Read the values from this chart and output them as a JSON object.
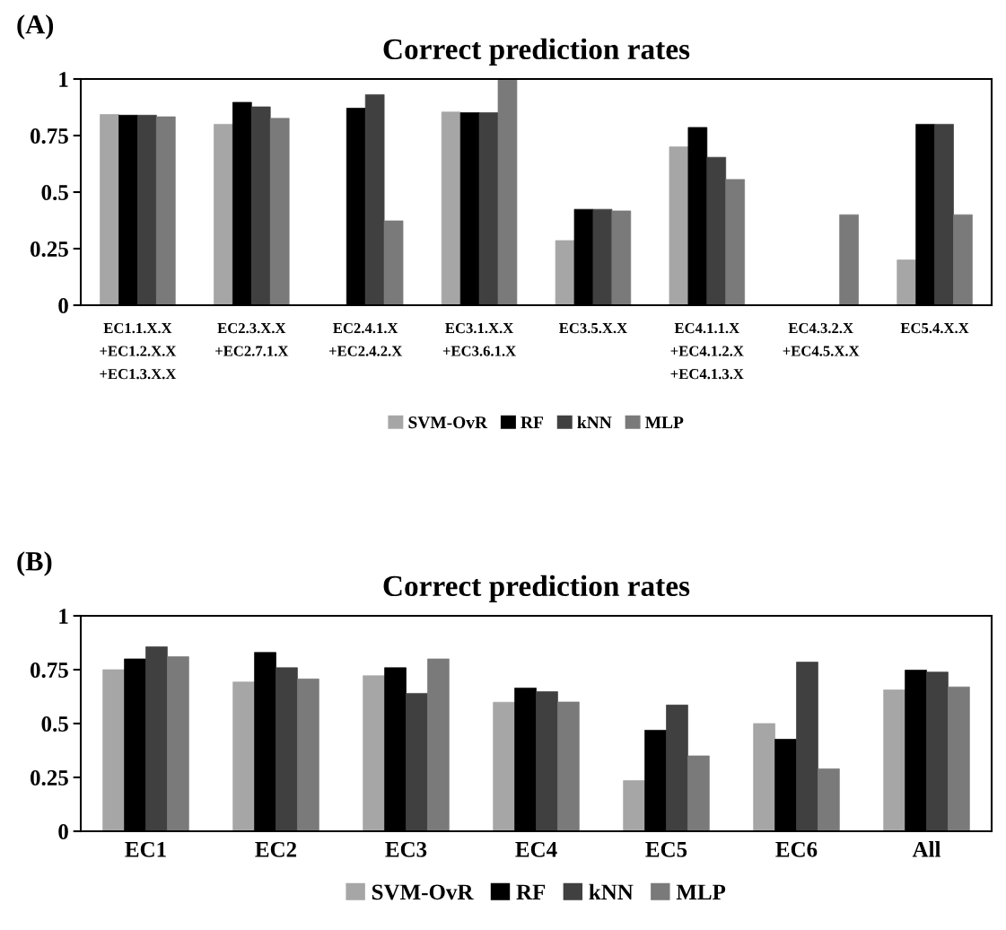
{
  "chart_data": [
    {
      "type": "bar",
      "title": "Correct prediction rates",
      "annotations": [
        "(A)"
      ],
      "categories": [
        "EC1.1.X.X\n+EC1.2.X.X\n+EC1.3.X.X",
        "EC2.3.X.X\n+EC2.7.1.X",
        "EC2.4.1.X\n+EC2.4.2.X",
        "EC3.1.X.X\n+EC3.6.1.X",
        "EC3.5.X.X",
        "EC4.1.1.X\n+EC4.1.2.X\n+EC4.1.3.X",
        "EC4.3.2.X\n+EC4.5.X.X",
        "EC5.4.X.X"
      ],
      "series": [
        {
          "name": "SVM-OvR",
          "color": "#a6a6a6",
          "values": [
            0.843,
            0.8,
            0,
            0.854,
            0.286,
            0.7,
            0,
            0.2
          ]
        },
        {
          "name": "RF",
          "color": "#000000",
          "values": [
            0.84,
            0.897,
            0.871,
            0.851,
            0.424,
            0.786,
            0,
            0.8
          ]
        },
        {
          "name": "kNN",
          "color": "#404040",
          "values": [
            0.84,
            0.877,
            0.931,
            0.851,
            0.424,
            0.654,
            0,
            0.8
          ]
        },
        {
          "name": "MLP",
          "color": "#7a7a7a",
          "values": [
            0.833,
            0.826,
            0.373,
            1.0,
            0.417,
            0.556,
            0.4,
            0.4
          ]
        }
      ],
      "ylim": [
        0,
        1
      ],
      "yticks": [
        0,
        0.25,
        0.5,
        0.75,
        1
      ],
      "grid": false,
      "legend": "bottom"
    },
    {
      "type": "bar",
      "title": "Correct prediction rates",
      "annotations": [
        "(B)"
      ],
      "categories": [
        "EC1",
        "EC2",
        "EC3",
        "EC4",
        "EC5",
        "EC6",
        "All"
      ],
      "series": [
        {
          "name": "SVM-OvR",
          "color": "#a6a6a6",
          "values": [
            0.75,
            0.693,
            0.722,
            0.599,
            0.235,
            0.5,
            0.656
          ]
        },
        {
          "name": "RF",
          "color": "#000000",
          "values": [
            0.8,
            0.83,
            0.759,
            0.665,
            0.469,
            0.427,
            0.748
          ]
        },
        {
          "name": "kNN",
          "color": "#404040",
          "values": [
            0.856,
            0.759,
            0.64,
            0.648,
            0.586,
            0.785,
            0.739
          ]
        },
        {
          "name": "MLP",
          "color": "#7a7a7a",
          "values": [
            0.81,
            0.707,
            0.8,
            0.6,
            0.35,
            0.29,
            0.67
          ]
        }
      ],
      "ylim": [
        0,
        1
      ],
      "yticks": [
        0,
        0.25,
        0.5,
        0.75,
        1
      ],
      "grid": false,
      "legend": "bottom"
    }
  ]
}
